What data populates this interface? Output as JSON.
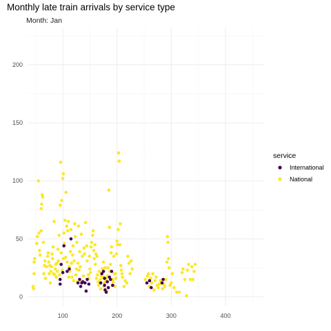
{
  "chart_data": {
    "type": "scatter",
    "title": "Monthly late train arrivals by service type",
    "subtitle": "Month: Jan",
    "xlabel": "",
    "ylabel": "",
    "xlim": [
      35,
      470
    ],
    "ylim": [
      -8,
      232
    ],
    "x_ticks": [
      100,
      200,
      300,
      400
    ],
    "y_ticks": [
      0,
      50,
      100,
      150,
      200
    ],
    "grid": true,
    "legend": {
      "title": "service",
      "position": "right"
    },
    "series": [
      {
        "name": "International",
        "color": "#440154",
        "points": [
          [
            95,
            11
          ],
          [
            95,
            15
          ],
          [
            97,
            28
          ],
          [
            100,
            21
          ],
          [
            102,
            44
          ],
          [
            108,
            22
          ],
          [
            112,
            24
          ],
          [
            115,
            50
          ],
          [
            128,
            12
          ],
          [
            131,
            15
          ],
          [
            133,
            9
          ],
          [
            135,
            12
          ],
          [
            137,
            13
          ],
          [
            141,
            12
          ],
          [
            143,
            5
          ],
          [
            145,
            15
          ],
          [
            148,
            11
          ],
          [
            170,
            12
          ],
          [
            172,
            20
          ],
          [
            175,
            22
          ],
          [
            177,
            10
          ],
          [
            177,
            16
          ],
          [
            178,
            6
          ],
          [
            180,
            4
          ],
          [
            182,
            13
          ],
          [
            184,
            8
          ],
          [
            186,
            17
          ],
          [
            188,
            15
          ],
          [
            190,
            22
          ],
          [
            192,
            10
          ],
          [
            255,
            12
          ],
          [
            260,
            14
          ],
          [
            263,
            8
          ],
          [
            283,
            12
          ],
          [
            285,
            15
          ]
        ]
      },
      {
        "name": "National",
        "color": "#fde725",
        "points": [
          [
            45,
            9
          ],
          [
            46,
            7
          ],
          [
            47,
            20
          ],
          [
            47,
            30
          ],
          [
            48,
            33
          ],
          [
            52,
            46
          ],
          [
            53,
            52
          ],
          [
            55,
            100
          ],
          [
            56,
            55
          ],
          [
            57,
            40
          ],
          [
            58,
            36
          ],
          [
            60,
            57
          ],
          [
            60,
            76
          ],
          [
            61,
            80
          ],
          [
            62,
            88
          ],
          [
            63,
            86
          ],
          [
            64,
            47
          ],
          [
            65,
            20
          ],
          [
            66,
            27
          ],
          [
            67,
            31
          ],
          [
            68,
            16
          ],
          [
            70,
            26
          ],
          [
            72,
            35
          ],
          [
            73,
            38
          ],
          [
            74,
            30
          ],
          [
            75,
            20
          ],
          [
            76,
            27
          ],
          [
            77,
            12
          ],
          [
            78,
            22
          ],
          [
            79,
            26
          ],
          [
            80,
            37
          ],
          [
            81,
            33
          ],
          [
            82,
            43
          ],
          [
            83,
            20
          ],
          [
            84,
            65
          ],
          [
            85,
            19
          ],
          [
            86,
            24
          ],
          [
            87,
            28
          ],
          [
            88,
            17
          ],
          [
            89,
            29
          ],
          [
            90,
            22
          ],
          [
            91,
            41
          ],
          [
            92,
            31
          ],
          [
            93,
            53
          ],
          [
            94,
            19
          ],
          [
            95,
            79
          ],
          [
            96,
            116
          ],
          [
            97,
            38
          ],
          [
            98,
            83
          ],
          [
            99,
            23
          ],
          [
            100,
            102
          ],
          [
            101,
            106
          ],
          [
            101,
            33
          ],
          [
            102,
            55
          ],
          [
            103,
            46
          ],
          [
            104,
            66
          ],
          [
            105,
            34
          ],
          [
            106,
            90
          ],
          [
            107,
            61
          ],
          [
            108,
            30
          ],
          [
            109,
            57
          ],
          [
            110,
            65
          ],
          [
            111,
            17
          ],
          [
            112,
            26
          ],
          [
            113,
            22
          ],
          [
            114,
            39
          ],
          [
            115,
            58
          ],
          [
            116,
            29
          ],
          [
            117,
            17
          ],
          [
            118,
            36
          ],
          [
            119,
            44
          ],
          [
            120,
            14
          ],
          [
            121,
            31
          ],
          [
            122,
            63
          ],
          [
            123,
            52
          ],
          [
            124,
            19
          ],
          [
            125,
            24
          ],
          [
            126,
            47
          ],
          [
            127,
            13
          ],
          [
            128,
            29
          ],
          [
            129,
            61
          ],
          [
            130,
            23
          ],
          [
            131,
            39
          ],
          [
            132,
            26
          ],
          [
            134,
            54
          ],
          [
            135,
            13
          ],
          [
            136,
            35
          ],
          [
            138,
            18
          ],
          [
            139,
            42
          ],
          [
            140,
            37
          ],
          [
            142,
            64
          ],
          [
            144,
            44
          ],
          [
            145,
            31
          ],
          [
            147,
            19
          ],
          [
            148,
            16
          ],
          [
            149,
            35
          ],
          [
            150,
            24
          ],
          [
            151,
            21
          ],
          [
            152,
            43
          ],
          [
            153,
            47
          ],
          [
            155,
            53
          ],
          [
            156,
            57
          ],
          [
            157,
            40
          ],
          [
            158,
            33
          ],
          [
            159,
            45
          ],
          [
            160,
            28
          ],
          [
            161,
            37
          ],
          [
            162,
            16
          ],
          [
            163,
            35
          ],
          [
            164,
            19
          ],
          [
            165,
            13
          ],
          [
            166,
            10
          ],
          [
            167,
            22
          ],
          [
            168,
            12
          ],
          [
            169,
            15
          ],
          [
            170,
            7
          ],
          [
            171,
            18
          ],
          [
            172,
            21
          ],
          [
            173,
            24
          ],
          [
            174,
            17
          ],
          [
            175,
            30
          ],
          [
            176,
            9
          ],
          [
            177,
            12
          ],
          [
            178,
            25
          ],
          [
            179,
            14
          ],
          [
            180,
            16
          ],
          [
            181,
            5
          ],
          [
            182,
            18
          ],
          [
            183,
            25
          ],
          [
            184,
            8
          ],
          [
            185,
            92
          ],
          [
            186,
            60
          ],
          [
            187,
            22
          ],
          [
            188,
            28
          ],
          [
            189,
            38
          ],
          [
            190,
            43
          ],
          [
            191,
            10
          ],
          [
            192,
            15
          ],
          [
            193,
            13
          ],
          [
            194,
            35
          ],
          [
            195,
            20
          ],
          [
            196,
            9
          ],
          [
            197,
            20
          ],
          [
            198,
            16
          ],
          [
            199,
            37
          ],
          [
            200,
            48
          ],
          [
            201,
            45
          ],
          [
            202,
            58
          ],
          [
            203,
            124
          ],
          [
            204,
            117
          ],
          [
            205,
            45
          ],
          [
            206,
            63
          ],
          [
            207,
            27
          ],
          [
            208,
            23
          ],
          [
            209,
            20
          ],
          [
            210,
            17
          ],
          [
            213,
            9
          ],
          [
            215,
            14
          ],
          [
            218,
            12
          ],
          [
            220,
            35
          ],
          [
            222,
            29
          ],
          [
            224,
            20
          ],
          [
            226,
            31
          ],
          [
            228,
            24
          ],
          [
            252,
            15
          ],
          [
            256,
            18
          ],
          [
            258,
            20
          ],
          [
            260,
            9
          ],
          [
            262,
            16
          ],
          [
            264,
            12
          ],
          [
            266,
            20
          ],
          [
            268,
            6
          ],
          [
            270,
            14
          ],
          [
            272,
            17
          ],
          [
            274,
            10
          ],
          [
            276,
            8
          ],
          [
            278,
            11
          ],
          [
            280,
            14
          ],
          [
            282,
            13
          ],
          [
            284,
            7
          ],
          [
            286,
            11
          ],
          [
            288,
            9
          ],
          [
            290,
            15
          ],
          [
            292,
            30
          ],
          [
            293,
            52
          ],
          [
            294,
            47
          ],
          [
            295,
            33
          ],
          [
            296,
            25
          ],
          [
            298,
            10
          ],
          [
            300,
            12
          ],
          [
            302,
            20
          ],
          [
            305,
            8
          ],
          [
            310,
            4
          ],
          [
            315,
            4
          ],
          [
            320,
            21
          ],
          [
            322,
            24
          ],
          [
            325,
            15
          ],
          [
            328,
            1
          ],
          [
            330,
            23
          ],
          [
            332,
            28
          ],
          [
            335,
            15
          ],
          [
            338,
            26
          ],
          [
            340,
            15
          ],
          [
            342,
            22
          ],
          [
            344,
            28
          ]
        ]
      }
    ]
  }
}
